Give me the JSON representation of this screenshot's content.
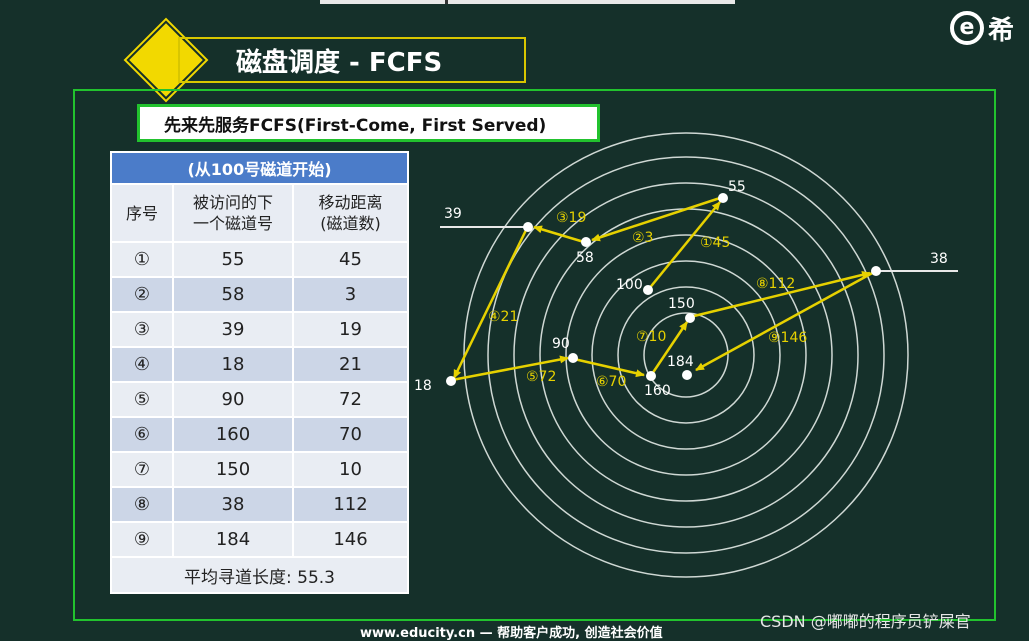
{
  "logo": {
    "mark": "e",
    "char": "希"
  },
  "title": "磁盘调度 - FCFS",
  "subtitle": "先来先服务FCFS(First-Come, First Served)",
  "table": {
    "caption": "(从100号磁道开始)",
    "col_seq": "序号",
    "col_track_line1": "被访问的下",
    "col_track_line2": "一个磁道号",
    "col_dist_line1": "移动距离",
    "col_dist_line2": "(磁道数)",
    "rows": [
      {
        "idx": "①",
        "track": "55",
        "dist": "45"
      },
      {
        "idx": "②",
        "track": "58",
        "dist": "3"
      },
      {
        "idx": "③",
        "track": "39",
        "dist": "19"
      },
      {
        "idx": "④",
        "track": "18",
        "dist": "21"
      },
      {
        "idx": "⑤",
        "track": "90",
        "dist": "72"
      },
      {
        "idx": "⑥",
        "track": "160",
        "dist": "70"
      },
      {
        "idx": "⑦",
        "track": "150",
        "dist": "10"
      },
      {
        "idx": "⑧",
        "track": "38",
        "dist": "112"
      },
      {
        "idx": "⑨",
        "track": "184",
        "dist": "146"
      }
    ],
    "average": "平均寻道长度: 55.3"
  },
  "diagram": {
    "start_label": "100",
    "points": [
      {
        "label": "55"
      },
      {
        "label": "58"
      },
      {
        "label": "39"
      },
      {
        "label": "18"
      },
      {
        "label": "90"
      },
      {
        "label": "160"
      },
      {
        "label": "150"
      },
      {
        "label": "38"
      },
      {
        "label": "184"
      }
    ],
    "moves": [
      "①45",
      "②3",
      "③19",
      "④21",
      "⑤72",
      "⑥70",
      "⑦10",
      "⑧112",
      "⑨146"
    ],
    "arrow_color": "#e6d100",
    "ring_color": "#cfd8d4"
  },
  "footer": "www.educity.cn — 帮助客户成功, 创造社会价值",
  "watermark": "CSDN @嘟嘟的程序员铲屎官"
}
